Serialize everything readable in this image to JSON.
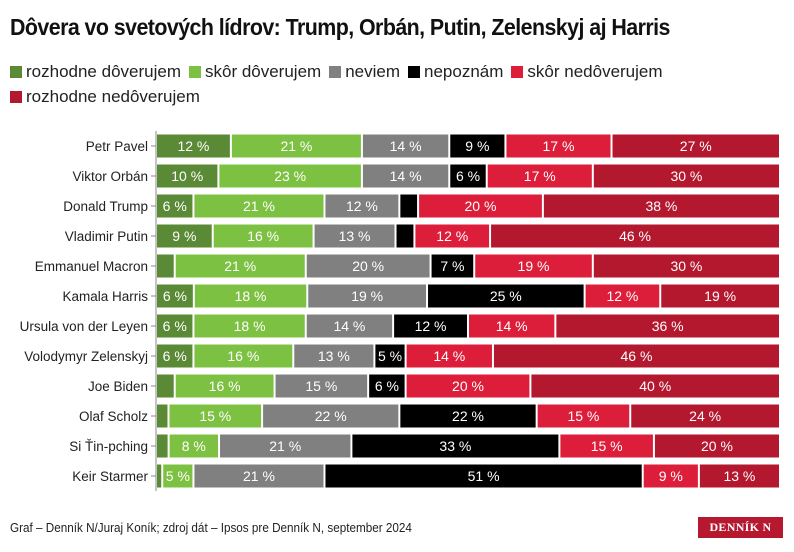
{
  "chart_data": {
    "type": "bar",
    "orientation": "horizontal",
    "stacked": true,
    "title": "Dôvera vo svetových lídrov: Trump, Orbán, Putin, Zelenskyj aj Harris",
    "legend_position": "top",
    "unit_suffix": " %",
    "categories": [
      "Petr Pavel",
      "Viktor Orbán",
      "Donald Trump",
      "Vladimir Putin",
      "Emmanuel Macron",
      "Kamala Harris",
      "Ursula von der Leyen",
      "Volodymyr Zelenskyj",
      "Joe Biden",
      "Olaf Scholz",
      "Si Ťin-pching",
      "Keir Starmer"
    ],
    "series": [
      {
        "name": "rozhodne dôverujem",
        "color": "#5b8a37",
        "values": [
          12,
          10,
          6,
          9,
          3,
          6,
          6,
          6,
          3,
          2,
          2,
          1
        ]
      },
      {
        "name": "skôr dôverujem",
        "color": "#7dc142",
        "values": [
          21,
          23,
          21,
          16,
          21,
          18,
          18,
          16,
          16,
          15,
          8,
          5
        ]
      },
      {
        "name": "neviem",
        "color": "#808080",
        "values": [
          14,
          14,
          12,
          13,
          20,
          19,
          14,
          13,
          15,
          22,
          21,
          21
        ]
      },
      {
        "name": "nepoznám",
        "color": "#000000",
        "values": [
          9,
          6,
          3,
          3,
          7,
          25,
          12,
          5,
          6,
          22,
          33,
          51
        ]
      },
      {
        "name": "skôr nedôverujem",
        "color": "#dc1e3a",
        "values": [
          17,
          17,
          20,
          12,
          19,
          12,
          14,
          14,
          20,
          15,
          15,
          9
        ]
      },
      {
        "name": "rozhodne nedôverujem",
        "color": "#b3182f",
        "values": [
          27,
          30,
          38,
          46,
          30,
          19,
          36,
          46,
          40,
          24,
          20,
          13
        ]
      }
    ]
  },
  "footer": "Graf – Denník N/Juraj Koník; zdroj dát – Ipsos pre Denník N, september 2024",
  "logo": "DENNÍK N"
}
